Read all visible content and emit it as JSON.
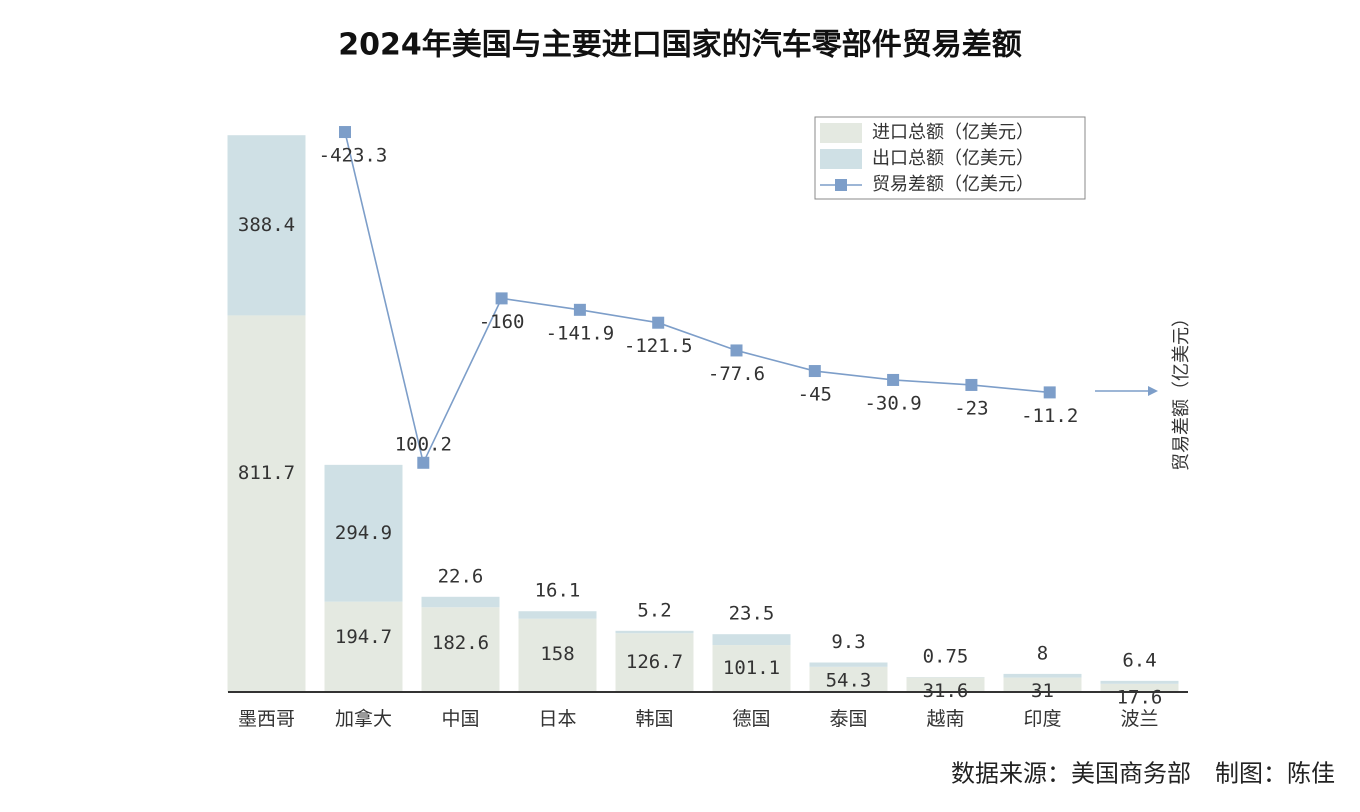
{
  "chart_data": {
    "type": "bar",
    "title": "2024年美国与主要进口国家的汽车零部件贸易差额",
    "categories": [
      "墨西哥",
      "加拿大",
      "中国",
      "日本",
      "韩国",
      "德国",
      "泰国",
      "越南",
      "印度",
      "波兰"
    ],
    "series": [
      {
        "name": "进口总额（亿美元）",
        "color": "#e4e9e1",
        "values": [
          811.7,
          194.7,
          182.6,
          158,
          126.7,
          101.1,
          54.3,
          31.6,
          31,
          17.6
        ]
      },
      {
        "name": "出口总额（亿美元）",
        "color": "#cfe0e5",
        "values": [
          388.4,
          294.9,
          22.6,
          16.1,
          5.2,
          23.5,
          9.3,
          0.75,
          8,
          6.4
        ]
      },
      {
        "name": "贸易差额（亿美元）",
        "type": "line",
        "axis": "y2",
        "color": "#7d9ec9",
        "values": [
          -423.3,
          100.2,
          -160,
          -141.9,
          -121.5,
          -77.6,
          -45,
          -30.9,
          -23,
          -11.2
        ]
      }
    ],
    "ylim": [
      0,
      1276
    ],
    "y2lim": [
      463,
      -474
    ],
    "y2label": "贸易差额（亿美元）",
    "stacked": true,
    "legend": "upper right",
    "annotation": "数据来源：美国商务部　制图：陈佳"
  }
}
